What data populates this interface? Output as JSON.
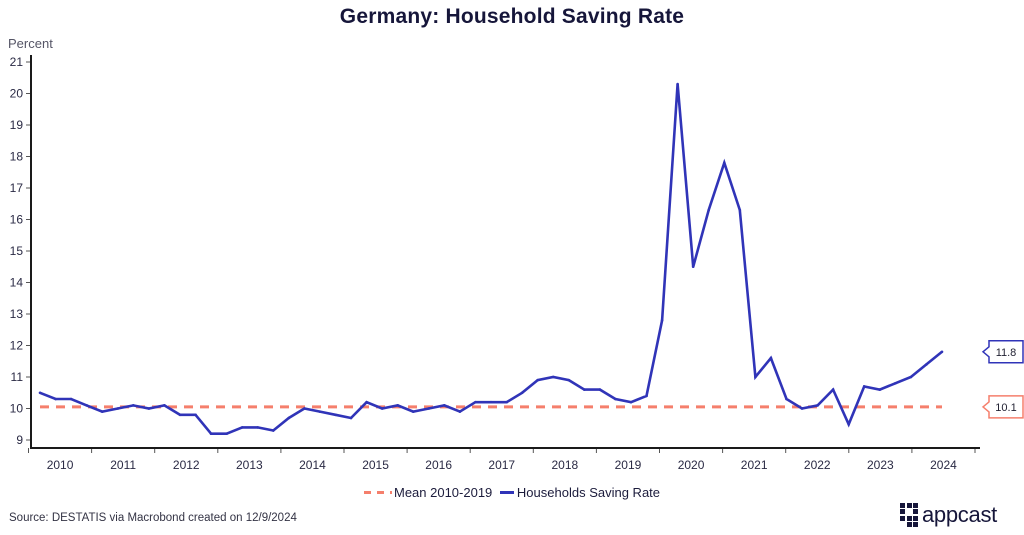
{
  "colors": {
    "series": "#3034b8",
    "mean": "#f57f6c",
    "axis": "#1a1a1a",
    "title": "#16163a"
  },
  "chart_data": {
    "type": "line",
    "title": "Germany: Household Saving Rate",
    "ylabel": "Percent",
    "xlabel": "",
    "ylim": [
      9,
      21
    ],
    "yticks": [
      "21",
      "20",
      "19",
      "18",
      "17",
      "16",
      "15",
      "14",
      "13",
      "12",
      "11",
      "10",
      "9"
    ],
    "xticks": [
      "2010",
      "2011",
      "2012",
      "2013",
      "2014",
      "2015",
      "2016",
      "2017",
      "2018",
      "2019",
      "2020",
      "2021",
      "2022",
      "2023",
      "2024"
    ],
    "x_frequency": "quarterly",
    "x_start": "2010 Q1",
    "x_end": "2024 Q3",
    "grid": false,
    "legend_position": "bottom-center",
    "series": [
      {
        "name": "Households Saving Rate",
        "style": "solid",
        "last_value_label": "11.8",
        "values": [
          10.5,
          10.3,
          10.3,
          10.1,
          9.9,
          10.0,
          10.1,
          10.0,
          10.1,
          9.8,
          9.8,
          9.2,
          9.2,
          9.4,
          9.4,
          9.3,
          9.7,
          10.0,
          9.9,
          9.8,
          9.7,
          10.2,
          10.0,
          10.1,
          9.9,
          10.0,
          10.1,
          9.9,
          10.2,
          10.2,
          10.2,
          10.5,
          10.9,
          11.0,
          10.9,
          10.6,
          10.6,
          10.3,
          10.2,
          10.4,
          12.8,
          20.3,
          14.5,
          16.3,
          17.8,
          16.3,
          11.0,
          11.6,
          10.3,
          10.0,
          10.1,
          10.6,
          9.5,
          10.7,
          10.6,
          10.8,
          11.0,
          11.4,
          11.8
        ]
      },
      {
        "name": "Mean 2010-2019",
        "style": "dashed",
        "value": 10.05,
        "last_value_label": "10.1"
      }
    ]
  },
  "legend": {
    "mean_label": "Mean 2010-2019",
    "series_label": "Households Saving Rate"
  },
  "footer": {
    "source": "Source: DESTATIS via Macrobond created on 12/9/2024",
    "logo_text": "appcast"
  }
}
